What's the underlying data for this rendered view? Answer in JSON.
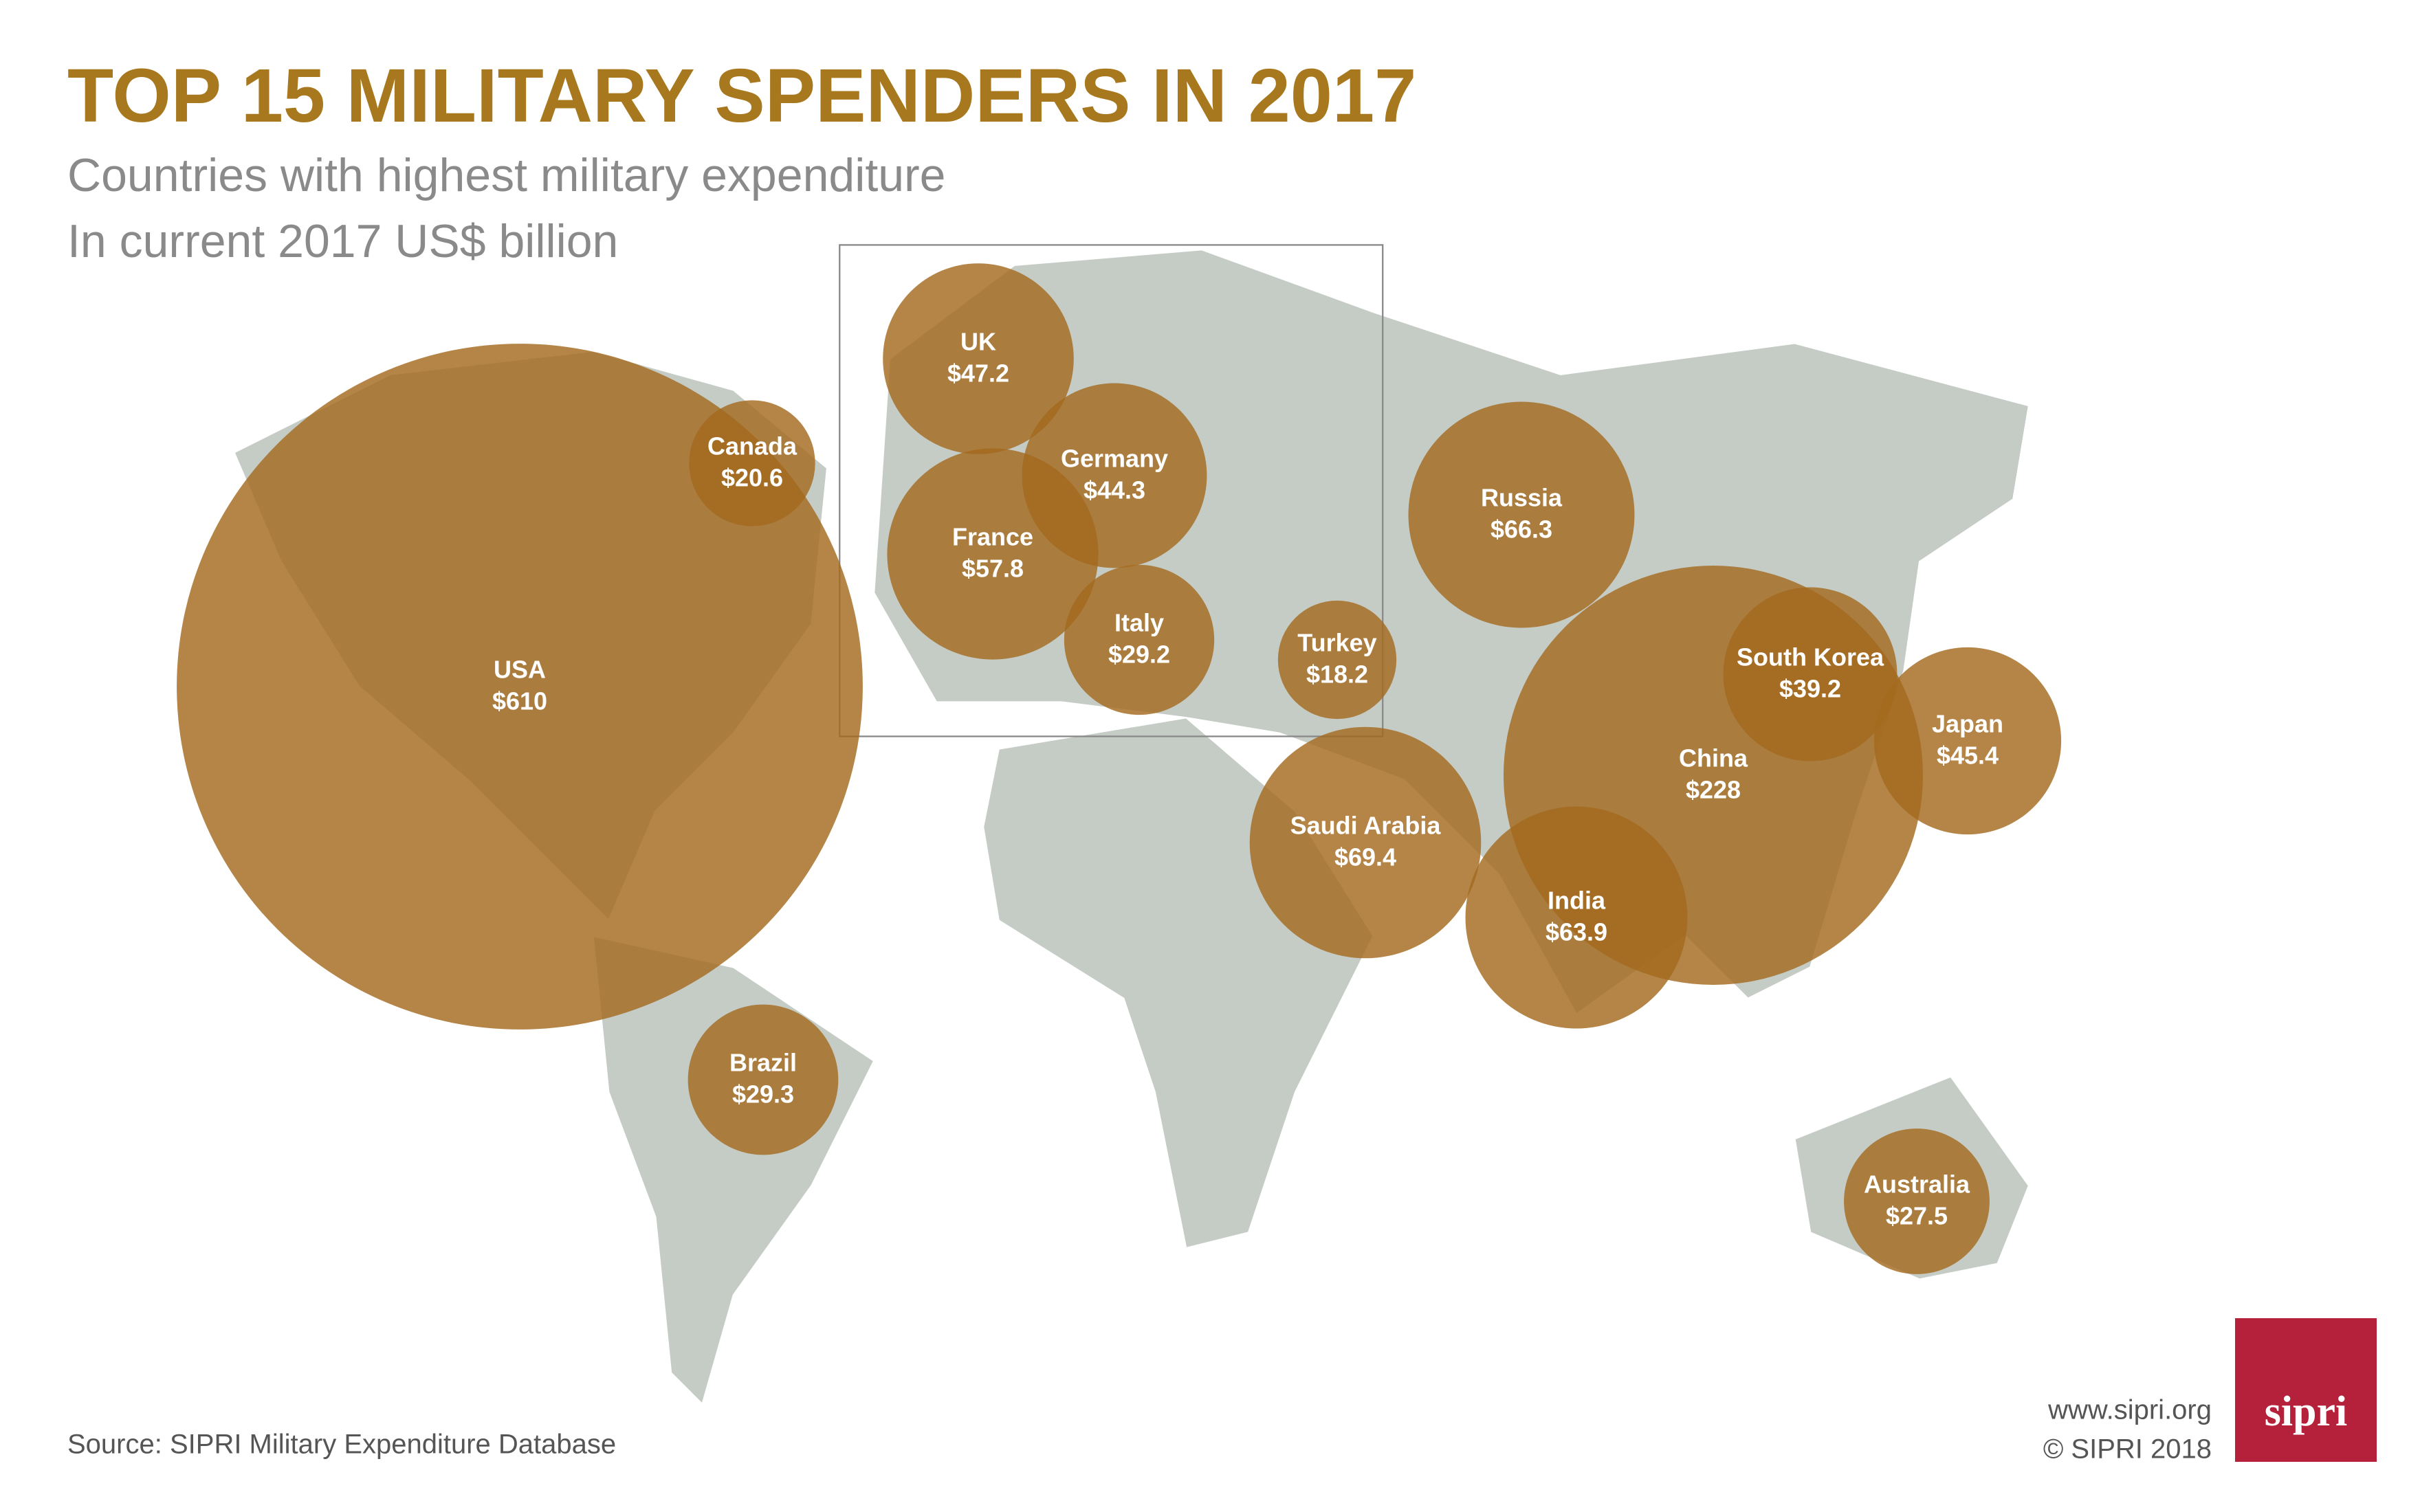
{
  "chart_data": {
    "type": "bubble",
    "title": "TOP 15 MILITARY SPENDERS IN 2017",
    "subtitle": [
      "Countries with highest military expenditure",
      "In current 2017 US$ billion"
    ],
    "categories": [
      "USA",
      "China",
      "Saudi Arabia",
      "Russia",
      "India",
      "France",
      "UK",
      "Japan",
      "Germany",
      "South Korea",
      "Brazil",
      "Italy",
      "Australia",
      "Canada",
      "Turkey"
    ],
    "values": [
      610,
      228,
      69.4,
      66.3,
      63.9,
      57.8,
      47.2,
      45.4,
      44.3,
      39.2,
      29.3,
      29.2,
      27.5,
      20.6,
      18.2
    ],
    "value_labels": [
      "$610",
      "$228",
      "$69.4",
      "$66.3",
      "$63.9",
      "$57.8",
      "$47.2",
      "$45.4",
      "$44.3",
      "$39.2",
      "$29.3",
      "$29.2",
      "$27.5",
      "$20.6",
      "$18.2"
    ],
    "color": "#a36a1e",
    "source": "Source: SIPRI Military Expenditure Database",
    "website": "www.sipri.org",
    "copyright": "© SIPRI 2018",
    "logo": "sipri"
  }
}
